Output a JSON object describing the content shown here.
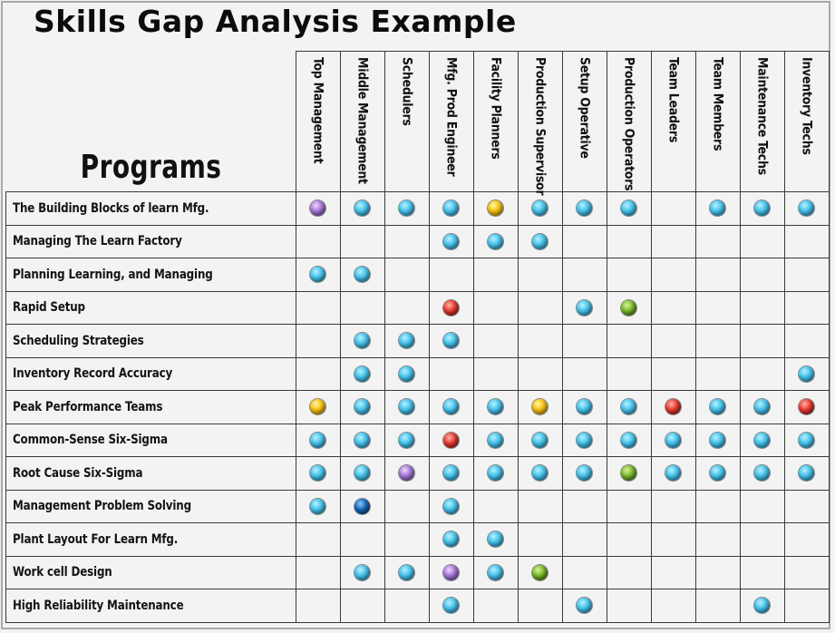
{
  "title": "Skills Gap Analysis Example",
  "programs_header": "Programs",
  "colors": {
    "blue": "#4cc6ec",
    "purple": "#a77ad8",
    "yellow": "#f5c311",
    "red": "#e33a30",
    "green": "#79b62a",
    "navy": "#1467b8",
    "grid_line": "#3a3a3a",
    "background": "#f3f3f3"
  },
  "roles": [
    "Top Management",
    "Middle Management",
    "Schedulers",
    "Mfg. Prod Engineer",
    "Facility Planners",
    "Production Supervisor",
    "Setup Operative",
    "Production Operators",
    "Team Leaders",
    "Team Members",
    "Maintenance Techs",
    "Inventory Techs"
  ],
  "rows": [
    {
      "program": "The Building Blocks of learn Mfg.",
      "cells": [
        "purple",
        "blue",
        "blue",
        "blue",
        "yellow",
        "blue",
        "blue",
        "blue",
        "",
        "blue",
        "blue",
        "blue"
      ]
    },
    {
      "program": "Managing The Learn Factory",
      "cells": [
        "",
        "",
        "",
        "blue",
        "blue",
        "blue",
        "",
        "",
        "",
        "",
        "",
        ""
      ]
    },
    {
      "program": "Planning Learning, and Managing",
      "cells": [
        "blue",
        "blue",
        "",
        "",
        "",
        "",
        "",
        "",
        "",
        "",
        "",
        ""
      ]
    },
    {
      "program": "Rapid Setup",
      "cells": [
        "",
        "",
        "",
        "red",
        "",
        "",
        "blue",
        "green",
        "",
        "",
        "",
        ""
      ]
    },
    {
      "program": "Scheduling Strategies",
      "cells": [
        "",
        "blue",
        "blue",
        "blue",
        "",
        "",
        "",
        "",
        "",
        "",
        "",
        ""
      ]
    },
    {
      "program": "Inventory Record Accuracy",
      "cells": [
        "",
        "blue",
        "blue",
        "",
        "",
        "",
        "",
        "",
        "",
        "",
        "",
        "blue"
      ]
    },
    {
      "program": "Peak Performance Teams",
      "cells": [
        "yellow",
        "blue",
        "blue",
        "blue",
        "blue",
        "yellow",
        "blue",
        "blue",
        "red",
        "blue",
        "blue",
        "red"
      ]
    },
    {
      "program": "Common-Sense Six-Sigma",
      "cells": [
        "blue",
        "blue",
        "blue",
        "red",
        "blue",
        "blue",
        "blue",
        "blue",
        "blue",
        "blue",
        "blue",
        "blue"
      ]
    },
    {
      "program": "Root Cause Six-Sigma",
      "cells": [
        "blue",
        "blue",
        "purple",
        "blue",
        "blue",
        "blue",
        "blue",
        "green",
        "blue",
        "blue",
        "blue",
        "blue"
      ]
    },
    {
      "program": "Management Problem Solving",
      "cells": [
        "blue",
        "navy",
        "",
        "blue",
        "",
        "",
        "",
        "",
        "",
        "",
        "",
        ""
      ]
    },
    {
      "program": "Plant Layout For Learn Mfg.",
      "cells": [
        "",
        "",
        "",
        "blue",
        "blue",
        "",
        "",
        "",
        "",
        "",
        "",
        ""
      ]
    },
    {
      "program": "Work cell Design",
      "cells": [
        "",
        "blue",
        "blue",
        "purple",
        "blue",
        "green",
        "",
        "",
        "",
        "",
        "",
        ""
      ]
    },
    {
      "program": "High Reliability Maintenance",
      "cells": [
        "",
        "",
        "",
        "blue",
        "",
        "",
        "blue",
        "",
        "",
        "",
        "blue",
        ""
      ]
    }
  ]
}
